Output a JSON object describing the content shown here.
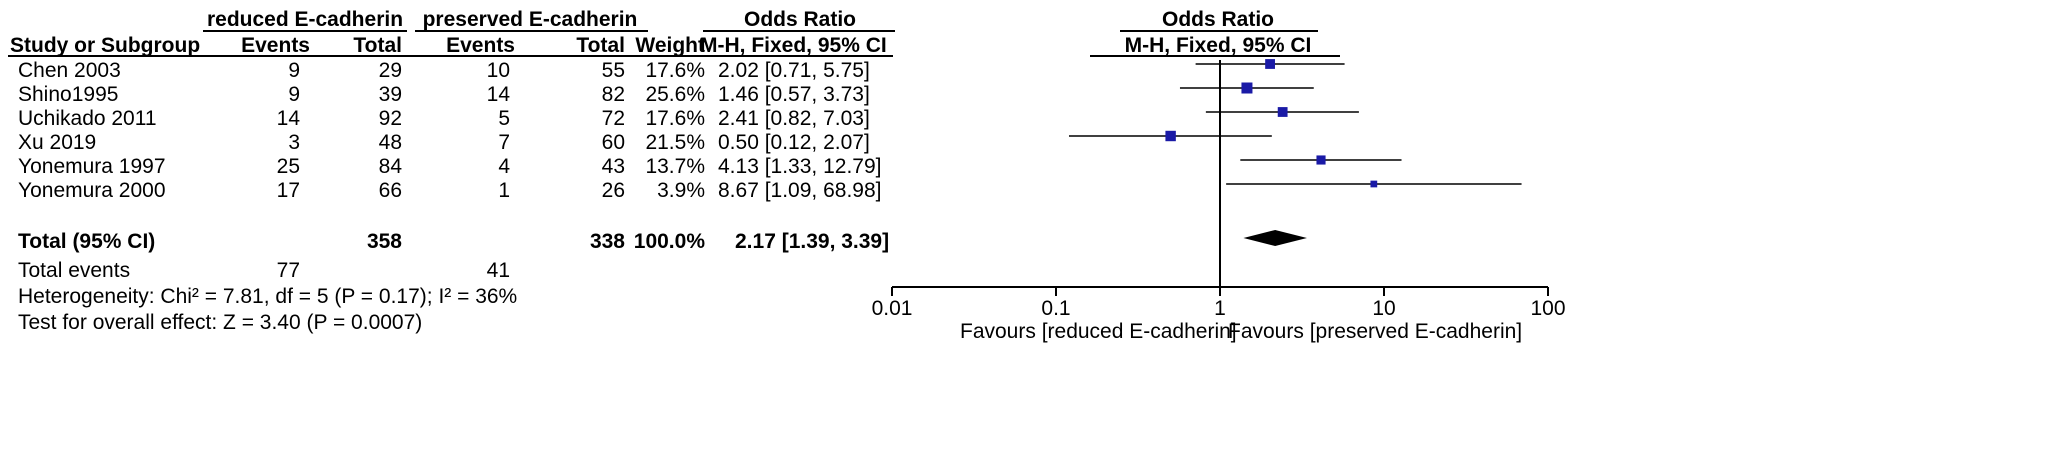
{
  "table": {
    "group_headers": {
      "experimental": "reduced E-cadherin",
      "control": "preserved E-cadherin",
      "or": "Odds Ratio"
    },
    "columns": {
      "study": "Study or Subgroup",
      "exp_events": "Events",
      "exp_total": "Total",
      "ctl_events": "Events",
      "ctl_total": "Total",
      "weight": "Weight",
      "ci": "M-H, Fixed, 95% CI"
    },
    "rows": [
      {
        "study": "Chen 2003",
        "exp_events": "9",
        "exp_total": "29",
        "ctl_events": "10",
        "ctl_total": "55",
        "weight": "17.6%",
        "ci": "2.02 [0.71, 5.75]"
      },
      {
        "study": "Shino1995",
        "exp_events": "9",
        "exp_total": "39",
        "ctl_events": "14",
        "ctl_total": "82",
        "weight": "25.6%",
        "ci": "1.46 [0.57, 3.73]"
      },
      {
        "study": "Uchikado  2011",
        "exp_events": "14",
        "exp_total": "92",
        "ctl_events": "5",
        "ctl_total": "72",
        "weight": "17.6%",
        "ci": "2.41 [0.82, 7.03]"
      },
      {
        "study": "Xu 2019",
        "exp_events": "3",
        "exp_total": "48",
        "ctl_events": "7",
        "ctl_total": "60",
        "weight": "21.5%",
        "ci": "0.50 [0.12, 2.07]"
      },
      {
        "study": "Yonemura 1997",
        "exp_events": "25",
        "exp_total": "84",
        "ctl_events": "4",
        "ctl_total": "43",
        "weight": "13.7%",
        "ci": "4.13 [1.33, 12.79]"
      },
      {
        "study": "Yonemura 2000",
        "exp_events": "17",
        "exp_total": "66",
        "ctl_events": "1",
        "ctl_total": "26",
        "weight": "3.9%",
        "ci": "8.67 [1.09, 68.98]"
      }
    ],
    "total": {
      "label": "Total (95% CI)",
      "exp_total": "358",
      "ctl_total": "338",
      "weight": "100.0%",
      "ci": "2.17 [1.39, 3.39]"
    },
    "events": {
      "label": "Total events",
      "exp": "77",
      "ctl": "41"
    },
    "heterogeneity": "Heterogeneity: Chi² = 7.81, df = 5 (P = 0.17); I² = 36%",
    "overall_effect": "Test for overall effect: Z = 3.40 (P = 0.0007)"
  },
  "chart_data": {
    "type": "forest",
    "title": "Odds Ratio",
    "subtitle": "M-H, Fixed, 95% CI",
    "x_scale": "log",
    "xlim": [
      0.01,
      100
    ],
    "ticks": [
      0.01,
      0.1,
      1,
      10,
      100
    ],
    "tick_labels": [
      "0.01",
      "0.1",
      "1",
      "10",
      "100"
    ],
    "reference_line": 1,
    "favours_left": "Favours [reduced E-cadherin]",
    "favours_right": "Favours [preserved E-cadherin]",
    "studies": [
      {
        "name": "Chen 2003",
        "or": 2.02,
        "lower": 0.71,
        "upper": 5.75,
        "weight": 17.6
      },
      {
        "name": "Shino1995",
        "or": 1.46,
        "lower": 0.57,
        "upper": 3.73,
        "weight": 25.6
      },
      {
        "name": "Uchikado  2011",
        "or": 2.41,
        "lower": 0.82,
        "upper": 7.03,
        "weight": 17.6
      },
      {
        "name": "Xu 2019",
        "or": 0.5,
        "lower": 0.12,
        "upper": 2.07,
        "weight": 21.5
      },
      {
        "name": "Yonemura 1997",
        "or": 4.13,
        "lower": 1.33,
        "upper": 12.79,
        "weight": 13.7
      },
      {
        "name": "Yonemura 2000",
        "or": 8.67,
        "lower": 1.09,
        "upper": 68.98,
        "weight": 3.9
      }
    ],
    "pooled": {
      "or": 2.17,
      "lower": 1.39,
      "upper": 3.39
    },
    "colors": {
      "marker": "#1a1aa6",
      "diamond": "#000000",
      "line": "#000000"
    }
  }
}
